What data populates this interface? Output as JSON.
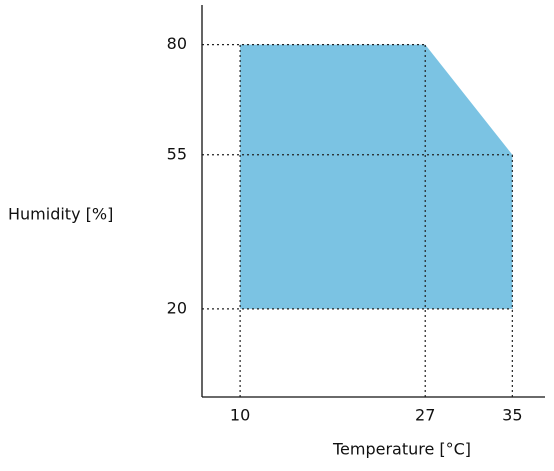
{
  "chart_data": {
    "type": "polygon",
    "x": [
      10,
      27,
      35,
      35,
      10
    ],
    "series": [
      {
        "color": "#7bc3e3",
        "values": [
          80,
          80,
          55,
          20,
          20
        ]
      }
    ],
    "xlim": [
      6.5,
      38
    ],
    "ylim": [
      0,
      89
    ],
    "xticks": [
      10,
      27,
      35
    ],
    "yticks": [
      20,
      55,
      80
    ],
    "xlabel": "Temperature [°C]",
    "ylabel": "Humidity [%]"
  }
}
